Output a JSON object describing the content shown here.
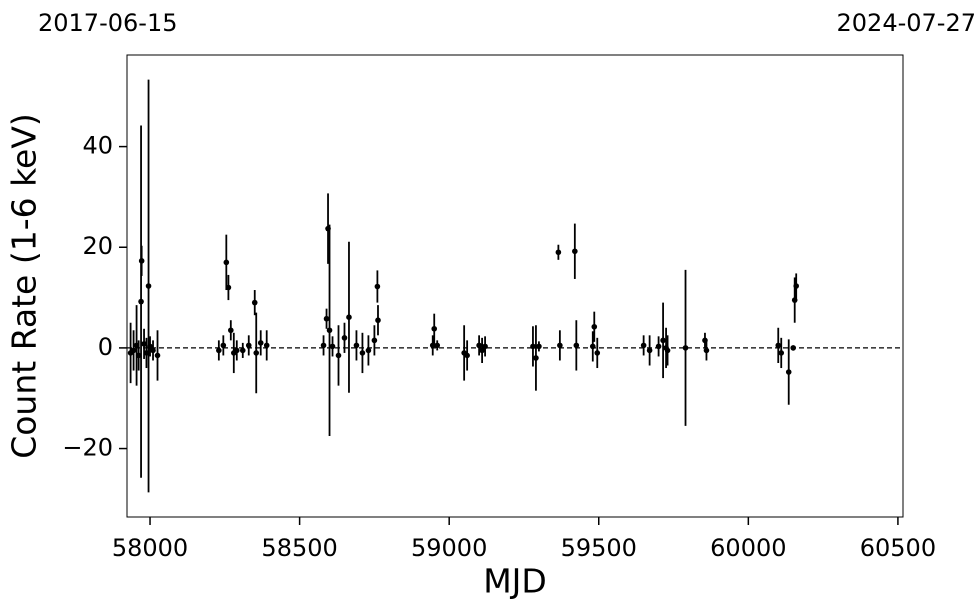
{
  "chart_data": {
    "type": "scatter",
    "annotations": [
      "2017-06-15",
      "2024-07-27"
    ],
    "xlabel": "MJD",
    "ylabel": "Count Rate (1-6 keV)",
    "xlim": [
      57923,
      60517
    ],
    "ylim": [
      -33.6,
      58.2
    ],
    "xticks": [
      58000,
      58500,
      59000,
      59500,
      60000,
      60500
    ],
    "yticks": [
      {
        "value": -20,
        "label": "−20"
      },
      0,
      20,
      40
    ],
    "hline": 0,
    "color": "#000000",
    "x": [
      57935,
      57945,
      57955,
      57962,
      57970,
      57972,
      57980,
      57988,
      57995,
      58000,
      58010,
      58025,
      58230,
      58245,
      58255,
      58262,
      58270,
      58280,
      58290,
      58310,
      58330,
      58350,
      58355,
      58370,
      58390,
      58580,
      58590,
      58595,
      58600,
      58610,
      58630,
      58650,
      58665,
      58690,
      58710,
      58730,
      58750,
      58760,
      58762,
      58945,
      58950,
      58960,
      59050,
      59060,
      59100,
      59110,
      59120,
      59280,
      59290,
      59300,
      59365,
      59370,
      59420,
      59425,
      59480,
      59485,
      59495,
      59650,
      59670,
      59700,
      59715,
      59725,
      59730,
      59790,
      59855,
      59860,
      60100,
      60110,
      60135,
      60150,
      60155,
      60160
    ],
    "values": [
      -1.0,
      -0.5,
      0.5,
      -1.5,
      9.2,
      17.3,
      0.8,
      -1,
      12.3,
      0.3,
      -0.5,
      -1.5,
      -0.5,
      0.5,
      17,
      12,
      3.5,
      -1,
      -0.5,
      -0.5,
      0.5,
      9,
      -1,
      1,
      0.5,
      0.5,
      5.8,
      23.7,
      3.5,
      0.3,
      -1.5,
      2,
      6.1,
      0.5,
      -1,
      -0.5,
      1.5,
      12.2,
      5.5,
      0.5,
      3.8,
      0.5,
      -1,
      -1.5,
      0.5,
      -0.5,
      0.3,
      0.3,
      -2,
      0.3,
      19,
      0.5,
      19.2,
      0.5,
      0.3,
      4.2,
      -1,
      0.5,
      -0.5,
      0.3,
      1.5,
      0,
      -0.5,
      0,
      1.5,
      -0.5,
      0.5,
      -1,
      -4.8,
      0,
      9.5,
      12.3
    ],
    "errors": [
      6,
      4,
      8,
      3,
      35,
      3,
      3,
      3,
      41,
      2,
      2,
      5,
      2,
      2,
      5.5,
      2.5,
      2,
      4,
      2,
      1.5,
      2,
      2.5,
      8,
      2.5,
      3,
      2,
      2,
      7,
      21,
      2,
      6,
      3,
      15,
      3,
      4,
      3,
      3,
      3.2,
      3,
      2,
      3,
      1,
      5.5,
      3,
      2,
      2.5,
      2,
      4,
      6.5,
      1,
      1.5,
      3,
      5.5,
      5,
      3,
      3,
      3,
      2,
      3,
      2,
      7.5,
      4,
      3,
      15.5,
      1.5,
      2,
      3.5,
      3,
      6.5,
      0.5,
      4.5,
      2.5
    ]
  }
}
